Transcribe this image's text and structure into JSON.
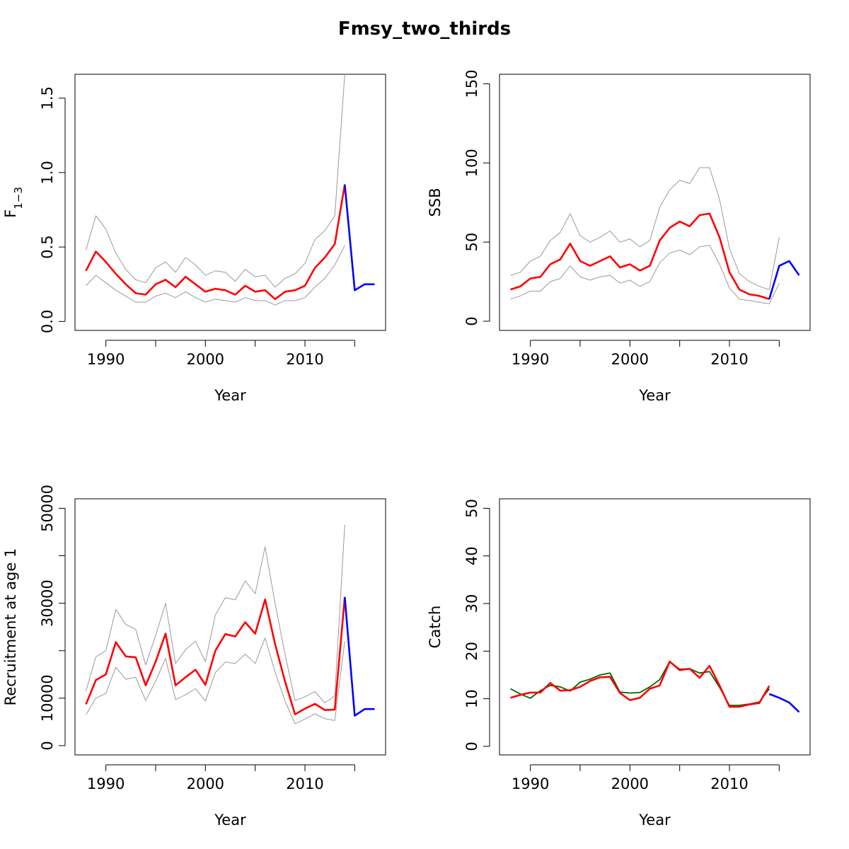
{
  "title": "Fmsy_two_thirds",
  "colors": {
    "estimate": "#ff0000",
    "confidence": "#999999",
    "forecast": "#0000ff",
    "observed": "#006400",
    "axis": "#000000"
  },
  "chart_data": [
    {
      "type": "line",
      "xlabel": "Year",
      "ylabel": "F",
      "ylabel_sub": "1−3",
      "xlim": [
        1986.9,
        2018.1
      ],
      "ylim": [
        -0.06,
        1.66
      ],
      "xticks": [
        1990,
        1995,
        2000,
        2005,
        2010,
        2015
      ],
      "xtick_labels": [
        "1990",
        "",
        "2000",
        "",
        "2010",
        ""
      ],
      "yticks": [
        0.0,
        0.5,
        1.0,
        1.5
      ],
      "ytick_labels": [
        "0.0",
        "0.5",
        "1.0",
        "1.5"
      ],
      "series": [
        {
          "role": "upper",
          "color": "#999999",
          "x": [
            1988,
            1989,
            1990,
            1991,
            1992,
            1993,
            1994,
            1995,
            1996,
            1997,
            1998,
            1999,
            2000,
            2001,
            2002,
            2003,
            2004,
            2005,
            2006,
            2007,
            2008,
            2009,
            2010,
            2011,
            2012,
            2013,
            2014
          ],
          "values": [
            0.48,
            0.71,
            0.62,
            0.46,
            0.35,
            0.28,
            0.26,
            0.36,
            0.4,
            0.33,
            0.43,
            0.38,
            0.31,
            0.34,
            0.33,
            0.27,
            0.35,
            0.3,
            0.31,
            0.23,
            0.29,
            0.32,
            0.39,
            0.55,
            0.61,
            0.71,
            1.66
          ]
        },
        {
          "role": "lower",
          "color": "#999999",
          "x": [
            1988,
            1989,
            1990,
            1991,
            1992,
            1993,
            1994,
            1995,
            1996,
            1997,
            1998,
            1999,
            2000,
            2001,
            2002,
            2003,
            2004,
            2005,
            2006,
            2007,
            2008,
            2009,
            2010,
            2011,
            2012,
            2013,
            2014
          ],
          "values": [
            0.24,
            0.31,
            0.26,
            0.21,
            0.17,
            0.13,
            0.13,
            0.17,
            0.19,
            0.16,
            0.2,
            0.16,
            0.13,
            0.15,
            0.14,
            0.13,
            0.16,
            0.14,
            0.14,
            0.11,
            0.14,
            0.14,
            0.16,
            0.23,
            0.29,
            0.38,
            0.51
          ]
        },
        {
          "role": "estimate",
          "color": "#ff0000",
          "x": [
            1988,
            1989,
            1990,
            1991,
            1992,
            1993,
            1994,
            1995,
            1996,
            1997,
            1998,
            1999,
            2000,
            2001,
            2002,
            2003,
            2004,
            2005,
            2006,
            2007,
            2008,
            2009,
            2010,
            2011,
            2012,
            2013,
            2014
          ],
          "values": [
            0.34,
            0.47,
            0.4,
            0.32,
            0.25,
            0.19,
            0.18,
            0.25,
            0.28,
            0.23,
            0.3,
            0.25,
            0.2,
            0.22,
            0.21,
            0.18,
            0.24,
            0.2,
            0.21,
            0.15,
            0.2,
            0.21,
            0.24,
            0.36,
            0.43,
            0.52,
            0.92
          ]
        },
        {
          "role": "forecast",
          "color": "#0000ff",
          "x": [
            2014,
            2015,
            2016,
            2017
          ],
          "values": [
            0.92,
            0.21,
            0.25,
            0.25
          ]
        }
      ]
    },
    {
      "type": "line",
      "xlabel": "Year",
      "ylabel": "SSB",
      "xlim": [
        1986.9,
        2018.1
      ],
      "ylim": [
        -5.8,
        156
      ],
      "xticks": [
        1990,
        1995,
        2000,
        2005,
        2010,
        2015
      ],
      "xtick_labels": [
        "1990",
        "",
        "2000",
        "",
        "2010",
        ""
      ],
      "yticks": [
        0,
        50,
        100,
        150
      ],
      "ytick_labels": [
        "0",
        "50",
        "100",
        "150"
      ],
      "series": [
        {
          "role": "upper",
          "color": "#999999",
          "x": [
            1988,
            1989,
            1990,
            1991,
            1992,
            1993,
            1994,
            1995,
            1996,
            1997,
            1998,
            1999,
            2000,
            2001,
            2002,
            2003,
            2004,
            2005,
            2006,
            2007,
            2008,
            2009,
            2010,
            2011,
            2012,
            2013,
            2014,
            2015
          ],
          "values": [
            29,
            31,
            38,
            41,
            51,
            56,
            68,
            54,
            50,
            53,
            57,
            50,
            52,
            47,
            51,
            72,
            83,
            89,
            87,
            97,
            97,
            77,
            46,
            30,
            25,
            22,
            20,
            53
          ]
        },
        {
          "role": "lower",
          "color": "#999999",
          "x": [
            1988,
            1989,
            1990,
            1991,
            1992,
            1993,
            1994,
            1995,
            1996,
            1997,
            1998,
            1999,
            2000,
            2001,
            2002,
            2003,
            2004,
            2005,
            2006,
            2007,
            2008,
            2009,
            2010,
            2011,
            2012,
            2013,
            2014,
            2015
          ],
          "values": [
            14,
            16,
            19,
            19,
            25,
            27,
            35,
            28,
            26,
            28,
            29,
            24,
            26,
            22,
            25,
            37,
            43,
            45,
            42,
            47,
            48,
            36,
            21,
            14,
            13,
            12,
            11,
            24
          ]
        },
        {
          "role": "estimate",
          "color": "#ff0000",
          "x": [
            1988,
            1989,
            1990,
            1991,
            1992,
            1993,
            1994,
            1995,
            1996,
            1997,
            1998,
            1999,
            2000,
            2001,
            2002,
            2003,
            2004,
            2005,
            2006,
            2007,
            2008,
            2009,
            2010,
            2011,
            2012,
            2013,
            2014
          ],
          "values": [
            20,
            22,
            27,
            28,
            36,
            39,
            49,
            38,
            35,
            38,
            41,
            34,
            36,
            32,
            35,
            51,
            59,
            63,
            60,
            67,
            68,
            53,
            31,
            20,
            17,
            16,
            14
          ]
        },
        {
          "role": "forecast",
          "color": "#0000ff",
          "x": [
            2014,
            2015,
            2016,
            2017
          ],
          "values": [
            14,
            35,
            38,
            29
          ]
        }
      ]
    },
    {
      "type": "line",
      "xlabel": "Year",
      "ylabel": "Recruitment at age 1",
      "xlim": [
        1986.9,
        2018.1
      ],
      "ylim": [
        -1950,
        52000
      ],
      "xticks": [
        1990,
        1995,
        2000,
        2005,
        2010,
        2015
      ],
      "xtick_labels": [
        "1990",
        "",
        "2000",
        "",
        "2010",
        ""
      ],
      "yticks": [
        0,
        10000,
        20000,
        30000,
        40000,
        50000
      ],
      "ytick_labels": [
        "0",
        "10000",
        "",
        "30000",
        "",
        "50000"
      ],
      "series": [
        {
          "role": "upper",
          "color": "#999999",
          "x": [
            1988,
            1989,
            1990,
            1991,
            1992,
            1993,
            1994,
            1995,
            1996,
            1997,
            1998,
            1999,
            2000,
            2001,
            2002,
            2003,
            2004,
            2005,
            2006,
            2007,
            2008,
            2009,
            2010,
            2011,
            2012,
            2013,
            2014
          ],
          "values": [
            11500,
            18700,
            20000,
            28700,
            25500,
            24500,
            17000,
            23200,
            30000,
            17300,
            20200,
            22000,
            17700,
            27500,
            31200,
            30700,
            34700,
            32000,
            41900,
            30000,
            19200,
            9500,
            10300,
            11400,
            9000,
            10500,
            46500
          ]
        },
        {
          "role": "lower",
          "color": "#999999",
          "x": [
            1988,
            1989,
            1990,
            1991,
            1992,
            1993,
            1994,
            1995,
            1996,
            1997,
            1998,
            1999,
            2000,
            2001,
            2002,
            2003,
            2004,
            2005,
            2006,
            2007,
            2008,
            2009,
            2010,
            2011,
            2012,
            2013,
            2014
          ],
          "values": [
            6500,
            10000,
            11000,
            16500,
            14000,
            14400,
            9500,
            13600,
            18400,
            9700,
            10700,
            12000,
            9400,
            15400,
            17600,
            17300,
            19300,
            17300,
            22700,
            15500,
            9400,
            4600,
            5600,
            6700,
            5700,
            5300,
            22000
          ]
        },
        {
          "role": "estimate",
          "color": "#ff0000",
          "x": [
            1988,
            1989,
            1990,
            1991,
            1992,
            1993,
            1994,
            1995,
            1996,
            1997,
            1998,
            1999,
            2000,
            2001,
            2002,
            2003,
            2004,
            2005,
            2006,
            2007,
            2008,
            2009,
            2010,
            2011,
            2012,
            2013,
            2014
          ],
          "values": [
            8700,
            13800,
            15000,
            21800,
            18800,
            18600,
            12700,
            17700,
            23600,
            12700,
            14400,
            16000,
            12800,
            20000,
            23500,
            23000,
            26000,
            23600,
            30800,
            21400,
            13500,
            6600,
            7800,
            8800,
            7500,
            7600,
            31300
          ]
        },
        {
          "role": "forecast",
          "color": "#0000ff",
          "x": [
            2014,
            2015,
            2016,
            2017
          ],
          "values": [
            31300,
            6300,
            7700,
            7700
          ]
        }
      ]
    },
    {
      "type": "line",
      "xlabel": "Year",
      "ylabel": "Catch",
      "xlim": [
        1986.9,
        2018.1
      ],
      "ylim": [
        -1.8,
        52
      ],
      "xticks": [
        1990,
        1995,
        2000,
        2005,
        2010,
        2015
      ],
      "xtick_labels": [
        "1990",
        "",
        "2000",
        "",
        "2010",
        ""
      ],
      "yticks": [
        0,
        10,
        20,
        30,
        40,
        50
      ],
      "ytick_labels": [
        "0",
        "10",
        "20",
        "30",
        "40",
        "50"
      ],
      "series": [
        {
          "role": "observed",
          "color": "#006400",
          "x": [
            1988,
            1989,
            1990,
            1991,
            1992,
            1993,
            1994,
            1995,
            1996,
            1997,
            1998,
            1999,
            2000,
            2001,
            2002,
            2003,
            2004,
            2005,
            2006,
            2007,
            2008,
            2009,
            2010,
            2011,
            2012,
            2013,
            2014
          ],
          "values": [
            12.1,
            11.0,
            10.1,
            11.7,
            12.8,
            12.5,
            11.6,
            13.5,
            14.1,
            15.0,
            15.4,
            11.4,
            11.2,
            11.3,
            12.5,
            14.0,
            17.8,
            16.2,
            16.3,
            15.4,
            15.7,
            12.4,
            8.6,
            8.6,
            8.9,
            9.3,
            12.1
          ]
        },
        {
          "role": "estimate",
          "color": "#ff0000",
          "x": [
            1988,
            1989,
            1990,
            1991,
            1992,
            1993,
            1994,
            1995,
            1996,
            1997,
            1998,
            1999,
            2000,
            2001,
            2002,
            2003,
            2004,
            2005,
            2006,
            2007,
            2008,
            2009,
            2010,
            2011,
            2012,
            2013,
            2014
          ],
          "values": [
            10.2,
            10.8,
            11.3,
            11.3,
            13.3,
            11.7,
            11.8,
            12.5,
            13.7,
            14.5,
            14.6,
            11.2,
            9.7,
            10.2,
            12.1,
            12.8,
            17.8,
            16.0,
            16.3,
            14.4,
            16.9,
            12.8,
            8.3,
            8.3,
            8.8,
            9.1,
            12.7
          ]
        },
        {
          "role": "forecast",
          "color": "#0000ff",
          "x": [
            2014,
            2015,
            2016,
            2017
          ],
          "values": [
            11.0,
            10.2,
            9.2,
            7.2
          ]
        }
      ]
    }
  ]
}
